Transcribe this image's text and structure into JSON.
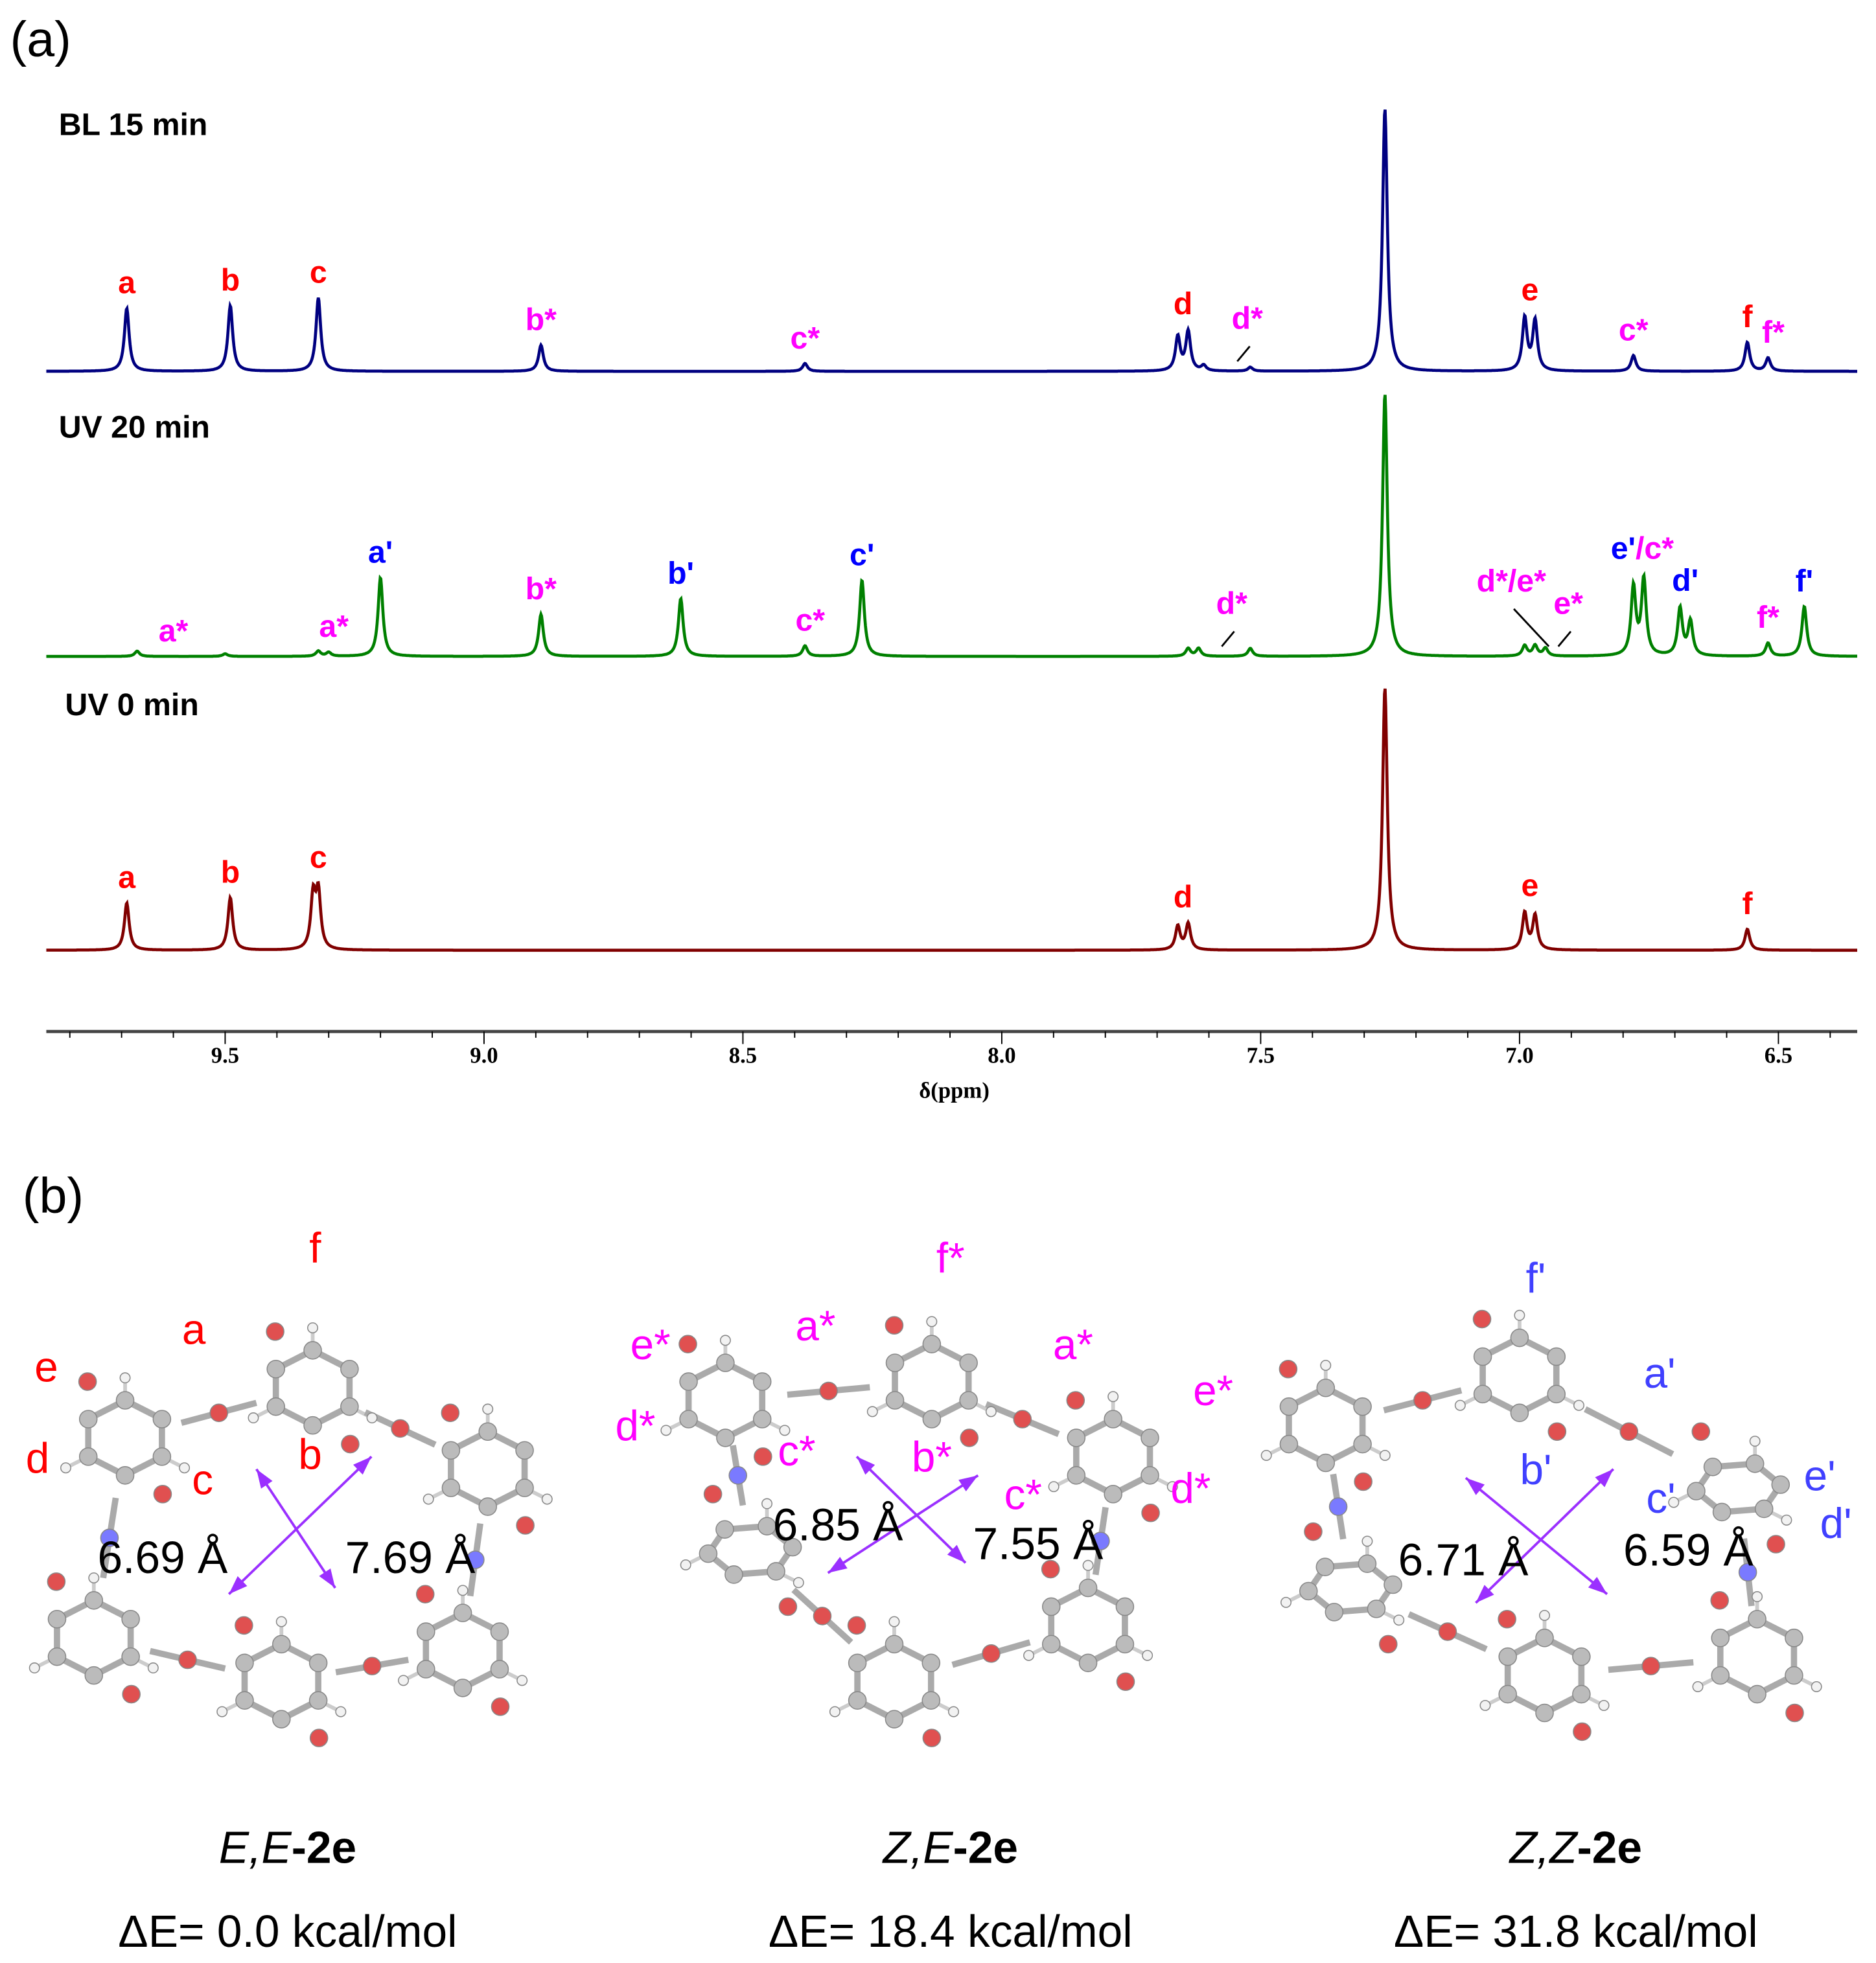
{
  "panel_a_label": "(a)",
  "panel_b_label": "(b)",
  "colors": {
    "red_label": "#ff0000",
    "magenta_label": "#ff00ff",
    "blue_label": "#0000ff",
    "bl_trace": "#000080",
    "uv20_trace": "#008000",
    "uv0_trace": "#800000"
  },
  "chart_data": {
    "type": "line",
    "xlabel": "δ(ppm)",
    "x_reversed": true,
    "xlim": [
      9.845,
      6.334
    ],
    "x_ticks": [
      "9.5",
      "9.0",
      "8.5",
      "8.0",
      "7.5",
      "7.0",
      "6.5"
    ],
    "y_units": "relative intensity (solvent peak = 1.0)",
    "series": [
      {
        "name": "BL 15 min",
        "color": "#000080",
        "peaks": [
          [
            9.69,
            0.24
          ],
          [
            9.49,
            0.25
          ],
          [
            9.32,
            0.28
          ],
          [
            8.89,
            0.1
          ],
          [
            8.38,
            0.03
          ],
          [
            7.66,
            0.13
          ],
          [
            7.64,
            0.15
          ],
          [
            7.61,
            0.02
          ],
          [
            7.52,
            0.015
          ],
          [
            7.26,
            1.0
          ],
          [
            6.99,
            0.2
          ],
          [
            6.97,
            0.19
          ],
          [
            6.78,
            0.06
          ],
          [
            6.56,
            0.11
          ],
          [
            6.52,
            0.05
          ]
        ],
        "labels": [
          {
            "text": "a",
            "ppm": 9.69,
            "color": "#ff0000"
          },
          {
            "text": "b",
            "ppm": 9.49,
            "color": "#ff0000"
          },
          {
            "text": "c",
            "ppm": 9.32,
            "color": "#ff0000"
          },
          {
            "text": "b*",
            "ppm": 8.89,
            "color": "#ff00ff"
          },
          {
            "text": "c*",
            "ppm": 8.38,
            "color": "#ff00ff"
          },
          {
            "text": "d",
            "ppm": 7.65,
            "color": "#ff0000"
          },
          {
            "text": "d*",
            "ppm": 7.55,
            "color": "#ff00ff",
            "arrow": true
          },
          {
            "text": "e",
            "ppm": 6.98,
            "color": "#ff0000"
          },
          {
            "text": "c*",
            "ppm": 6.78,
            "color": "#ff00ff"
          },
          {
            "text": "f",
            "ppm": 6.56,
            "color": "#ff0000"
          },
          {
            "text": "f*",
            "ppm": 6.51,
            "color": "#ff00ff"
          }
        ]
      },
      {
        "name": "UV 20 min",
        "color": "#008000",
        "peaks": [
          [
            9.67,
            0.02
          ],
          [
            9.5,
            0.01
          ],
          [
            9.32,
            0.02
          ],
          [
            9.3,
            0.015
          ],
          [
            9.2,
            0.3
          ],
          [
            8.89,
            0.16
          ],
          [
            8.62,
            0.22
          ],
          [
            8.38,
            0.04
          ],
          [
            8.27,
            0.29
          ],
          [
            7.64,
            0.03
          ],
          [
            7.62,
            0.03
          ],
          [
            7.52,
            0.03
          ],
          [
            7.26,
            1.0
          ],
          [
            6.99,
            0.04
          ],
          [
            6.97,
            0.04
          ],
          [
            6.95,
            0.03
          ],
          [
            6.78,
            0.26
          ],
          [
            6.76,
            0.29
          ],
          [
            6.69,
            0.18
          ],
          [
            6.67,
            0.13
          ],
          [
            6.52,
            0.05
          ],
          [
            6.45,
            0.19
          ]
        ],
        "labels": [
          {
            "text": "a*",
            "ppm": 9.6,
            "color": "#ff00ff"
          },
          {
            "text": "a*",
            "ppm": 9.29,
            "color": "#ff00ff"
          },
          {
            "text": "a'",
            "ppm": 9.2,
            "color": "#0000ff"
          },
          {
            "text": "b*",
            "ppm": 8.89,
            "color": "#ff00ff"
          },
          {
            "text": "b'",
            "ppm": 8.62,
            "color": "#0000ff"
          },
          {
            "text": "c*",
            "ppm": 8.37,
            "color": "#ff00ff"
          },
          {
            "text": "c'",
            "ppm": 8.27,
            "color": "#0000ff"
          },
          {
            "text": "d*",
            "ppm": 7.58,
            "color": "#ff00ff",
            "arrow": true
          },
          {
            "text": "d*/e*",
            "ppm": 7.04,
            "color": "#ff00ff",
            "arrow": true
          },
          {
            "text": "e*",
            "ppm": 6.93,
            "color": "#ff00ff",
            "arrow": true
          },
          {
            "text": "e'",
            "ppm": 6.8,
            "color": "#0000ff"
          },
          {
            "text": "/c*",
            "ppm": 6.76,
            "color": "#ff00ff"
          },
          {
            "text": "d'",
            "ppm": 6.68,
            "color": "#0000ff"
          },
          {
            "text": "f*",
            "ppm": 6.52,
            "color": "#ff00ff"
          },
          {
            "text": "f'",
            "ppm": 6.45,
            "color": "#0000ff"
          }
        ]
      },
      {
        "name": "UV 0 min",
        "color": "#800000",
        "peaks": [
          [
            9.69,
            0.18
          ],
          [
            9.49,
            0.2
          ],
          [
            9.33,
            0.2
          ],
          [
            9.32,
            0.21
          ],
          [
            7.66,
            0.09
          ],
          [
            7.64,
            0.1
          ],
          [
            7.26,
            1.0
          ],
          [
            6.99,
            0.14
          ],
          [
            6.97,
            0.13
          ],
          [
            6.56,
            0.08
          ]
        ],
        "labels": [
          {
            "text": "a",
            "ppm": 9.69,
            "color": "#ff0000"
          },
          {
            "text": "b",
            "ppm": 9.49,
            "color": "#ff0000"
          },
          {
            "text": "c",
            "ppm": 9.32,
            "color": "#ff0000"
          },
          {
            "text": "d",
            "ppm": 7.65,
            "color": "#ff0000"
          },
          {
            "text": "e",
            "ppm": 6.98,
            "color": "#ff0000"
          },
          {
            "text": "f",
            "ppm": 6.56,
            "color": "#ff0000"
          }
        ]
      }
    ]
  },
  "molecules": [
    {
      "title_italic": "E,E",
      "title_bold": "-2e",
      "energy": "ΔE= 0.0 kcal/mol",
      "distances": [
        "6.69 Å",
        "7.69 Å"
      ],
      "atom_labels": [
        {
          "text": "f",
          "color": "#ff0000"
        },
        {
          "text": "a",
          "color": "#ff0000"
        },
        {
          "text": "e",
          "color": "#ff0000"
        },
        {
          "text": "d",
          "color": "#ff0000"
        },
        {
          "text": "c",
          "color": "#ff0000"
        },
        {
          "text": "b",
          "color": "#ff0000"
        }
      ]
    },
    {
      "title_italic": "Z,E",
      "title_bold": "-2e",
      "energy": "ΔE= 18.4 kcal/mol",
      "distances": [
        "6.85 Å",
        "7.55 Å"
      ],
      "atom_labels": [
        {
          "text": "f*",
          "color": "#ff00ff"
        },
        {
          "text": "a*",
          "color": "#ff00ff"
        },
        {
          "text": "a*",
          "color": "#ff00ff"
        },
        {
          "text": "e*",
          "color": "#ff00ff"
        },
        {
          "text": "e*",
          "color": "#ff00ff"
        },
        {
          "text": "d*",
          "color": "#ff00ff"
        },
        {
          "text": "d*",
          "color": "#ff00ff"
        },
        {
          "text": "c*",
          "color": "#ff00ff"
        },
        {
          "text": "b*",
          "color": "#ff00ff"
        },
        {
          "text": "c*",
          "color": "#ff00ff"
        }
      ]
    },
    {
      "title_italic": "Z,Z",
      "title_bold": "-2e",
      "energy": "ΔE= 31.8 kcal/mol",
      "distances": [
        "6.71 Å",
        "6.59 Å"
      ],
      "atom_labels": [
        {
          "text": "f'",
          "color": "#4040ff"
        },
        {
          "text": "a'",
          "color": "#4040ff"
        },
        {
          "text": "b'",
          "color": "#4040ff"
        },
        {
          "text": "c'",
          "color": "#4040ff"
        },
        {
          "text": "e'",
          "color": "#4040ff"
        },
        {
          "text": "d'",
          "color": "#4040ff"
        }
      ]
    }
  ]
}
